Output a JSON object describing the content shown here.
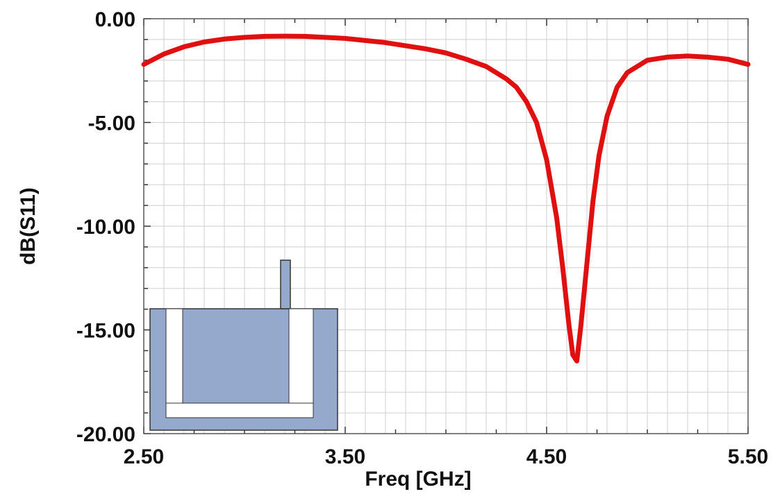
{
  "chart_data": {
    "type": "line",
    "xlabel": "Freq [GHz]",
    "ylabel": "dB(S11)",
    "xlim": [
      2.5,
      5.5
    ],
    "ylim": [
      -20,
      0
    ],
    "x_ticks": [
      "2.50",
      "3.50",
      "4.50",
      "5.50"
    ],
    "y_ticks": [
      "0.00",
      "-5.00",
      "-10.00",
      "-15.00",
      "-20.00"
    ],
    "grid": true,
    "series": [
      {
        "color": "#e01010",
        "x": [
          2.5,
          2.6,
          2.7,
          2.8,
          2.9,
          3.0,
          3.1,
          3.2,
          3.3,
          3.4,
          3.5,
          3.6,
          3.7,
          3.8,
          3.9,
          4.0,
          4.1,
          4.2,
          4.3,
          4.35,
          4.4,
          4.45,
          4.5,
          4.55,
          4.58,
          4.61,
          4.63,
          4.65,
          4.67,
          4.7,
          4.73,
          4.76,
          4.8,
          4.85,
          4.9,
          5.0,
          5.1,
          5.2,
          5.3,
          5.4,
          5.5
        ],
        "y": [
          -2.2,
          -1.7,
          -1.35,
          -1.12,
          -0.98,
          -0.9,
          -0.85,
          -0.84,
          -0.85,
          -0.9,
          -0.95,
          -1.05,
          -1.15,
          -1.3,
          -1.45,
          -1.65,
          -1.95,
          -2.3,
          -2.9,
          -3.3,
          -4.0,
          -5.0,
          -6.8,
          -9.6,
          -12.0,
          -14.7,
          -16.2,
          -16.5,
          -14.8,
          -11.8,
          -8.8,
          -6.6,
          -4.7,
          -3.3,
          -2.6,
          -2.0,
          -1.85,
          -1.8,
          -1.85,
          -1.95,
          -2.2
        ]
      }
    ]
  },
  "inset": {
    "fill_color": "#94a9cc",
    "slot_color": "#ffffff",
    "outline_color": "#333333"
  }
}
